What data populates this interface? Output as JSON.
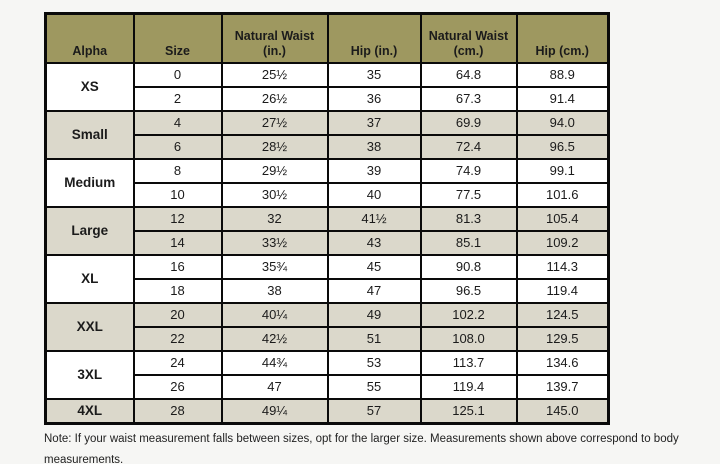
{
  "table": {
    "headers": [
      "Alpha",
      "Size",
      "Natural Waist (in.)",
      "Hip (in.)",
      "Natural Waist (cm.)",
      "Hip (cm.)"
    ],
    "groups": [
      {
        "alpha": "XS",
        "shaded": false,
        "rows": [
          [
            "0",
            "25½",
            "35",
            "64.8",
            "88.9"
          ],
          [
            "2",
            "26½",
            "36",
            "67.3",
            "91.4"
          ]
        ]
      },
      {
        "alpha": "Small",
        "shaded": true,
        "rows": [
          [
            "4",
            "27½",
            "37",
            "69.9",
            "94.0"
          ],
          [
            "6",
            "28½",
            "38",
            "72.4",
            "96.5"
          ]
        ]
      },
      {
        "alpha": "Medium",
        "shaded": false,
        "rows": [
          [
            "8",
            "29½",
            "39",
            "74.9",
            "99.1"
          ],
          [
            "10",
            "30½",
            "40",
            "77.5",
            "101.6"
          ]
        ]
      },
      {
        "alpha": "Large",
        "shaded": true,
        "rows": [
          [
            "12",
            "32",
            "41½",
            "81.3",
            "105.4"
          ],
          [
            "14",
            "33½",
            "43",
            "85.1",
            "109.2"
          ]
        ]
      },
      {
        "alpha": "XL",
        "shaded": false,
        "rows": [
          [
            "16",
            "35¾",
            "45",
            "90.8",
            "114.3"
          ],
          [
            "18",
            "38",
            "47",
            "96.5",
            "119.4"
          ]
        ]
      },
      {
        "alpha": "XXL",
        "shaded": true,
        "rows": [
          [
            "20",
            "40¼",
            "49",
            "102.2",
            "124.5"
          ],
          [
            "22",
            "42½",
            "51",
            "108.0",
            "129.5"
          ]
        ]
      },
      {
        "alpha": "3XL",
        "shaded": false,
        "rows": [
          [
            "24",
            "44¾",
            "53",
            "113.7",
            "134.6"
          ],
          [
            "26",
            "47",
            "55",
            "119.4",
            "139.7"
          ]
        ]
      },
      {
        "alpha": "4XL",
        "shaded": true,
        "rows": [
          [
            "28",
            "49¼",
            "57",
            "125.1",
            "145.0"
          ]
        ]
      }
    ]
  },
  "note": "Note: If your waist measurement falls between sizes, opt for the larger size. Measurements shown above correspond to body measurements.",
  "colors": {
    "header_bg": "#9e9860",
    "shaded_row_bg": "#dbd8cb",
    "page_bg": "#f6f6f4",
    "border": "#0a0a0a"
  },
  "chart_data": {
    "type": "table",
    "title": "Apparel size chart: alpha size vs numeric size, waist and hip measurements",
    "columns": [
      "Alpha",
      "Size",
      "Natural Waist (in.)",
      "Hip (in.)",
      "Natural Waist (cm.)",
      "Hip (cm.)"
    ],
    "rows": [
      [
        "XS",
        0,
        "25½",
        "35",
        64.8,
        88.9
      ],
      [
        "XS",
        2,
        "26½",
        "36",
        67.3,
        91.4
      ],
      [
        "Small",
        4,
        "27½",
        "37",
        69.9,
        94.0
      ],
      [
        "Small",
        6,
        "28½",
        "38",
        72.4,
        96.5
      ],
      [
        "Medium",
        8,
        "29½",
        "39",
        74.9,
        99.1
      ],
      [
        "Medium",
        10,
        "30½",
        "40",
        77.5,
        101.6
      ],
      [
        "Large",
        12,
        "32",
        "41½",
        81.3,
        105.4
      ],
      [
        "Large",
        14,
        "33½",
        "43",
        85.1,
        109.2
      ],
      [
        "XL",
        16,
        "35¾",
        "45",
        90.8,
        114.3
      ],
      [
        "XL",
        18,
        "38",
        "47",
        96.5,
        119.4
      ],
      [
        "XXL",
        20,
        "40¼",
        "49",
        102.2,
        124.5
      ],
      [
        "XXL",
        22,
        "42½",
        "51",
        108.0,
        129.5
      ],
      [
        "3XL",
        24,
        "44¾",
        "53",
        113.7,
        134.6
      ],
      [
        "3XL",
        26,
        "47",
        "55",
        119.4,
        139.7
      ],
      [
        "4XL",
        28,
        "49¼",
        "57",
        125.1,
        145.0
      ]
    ]
  }
}
